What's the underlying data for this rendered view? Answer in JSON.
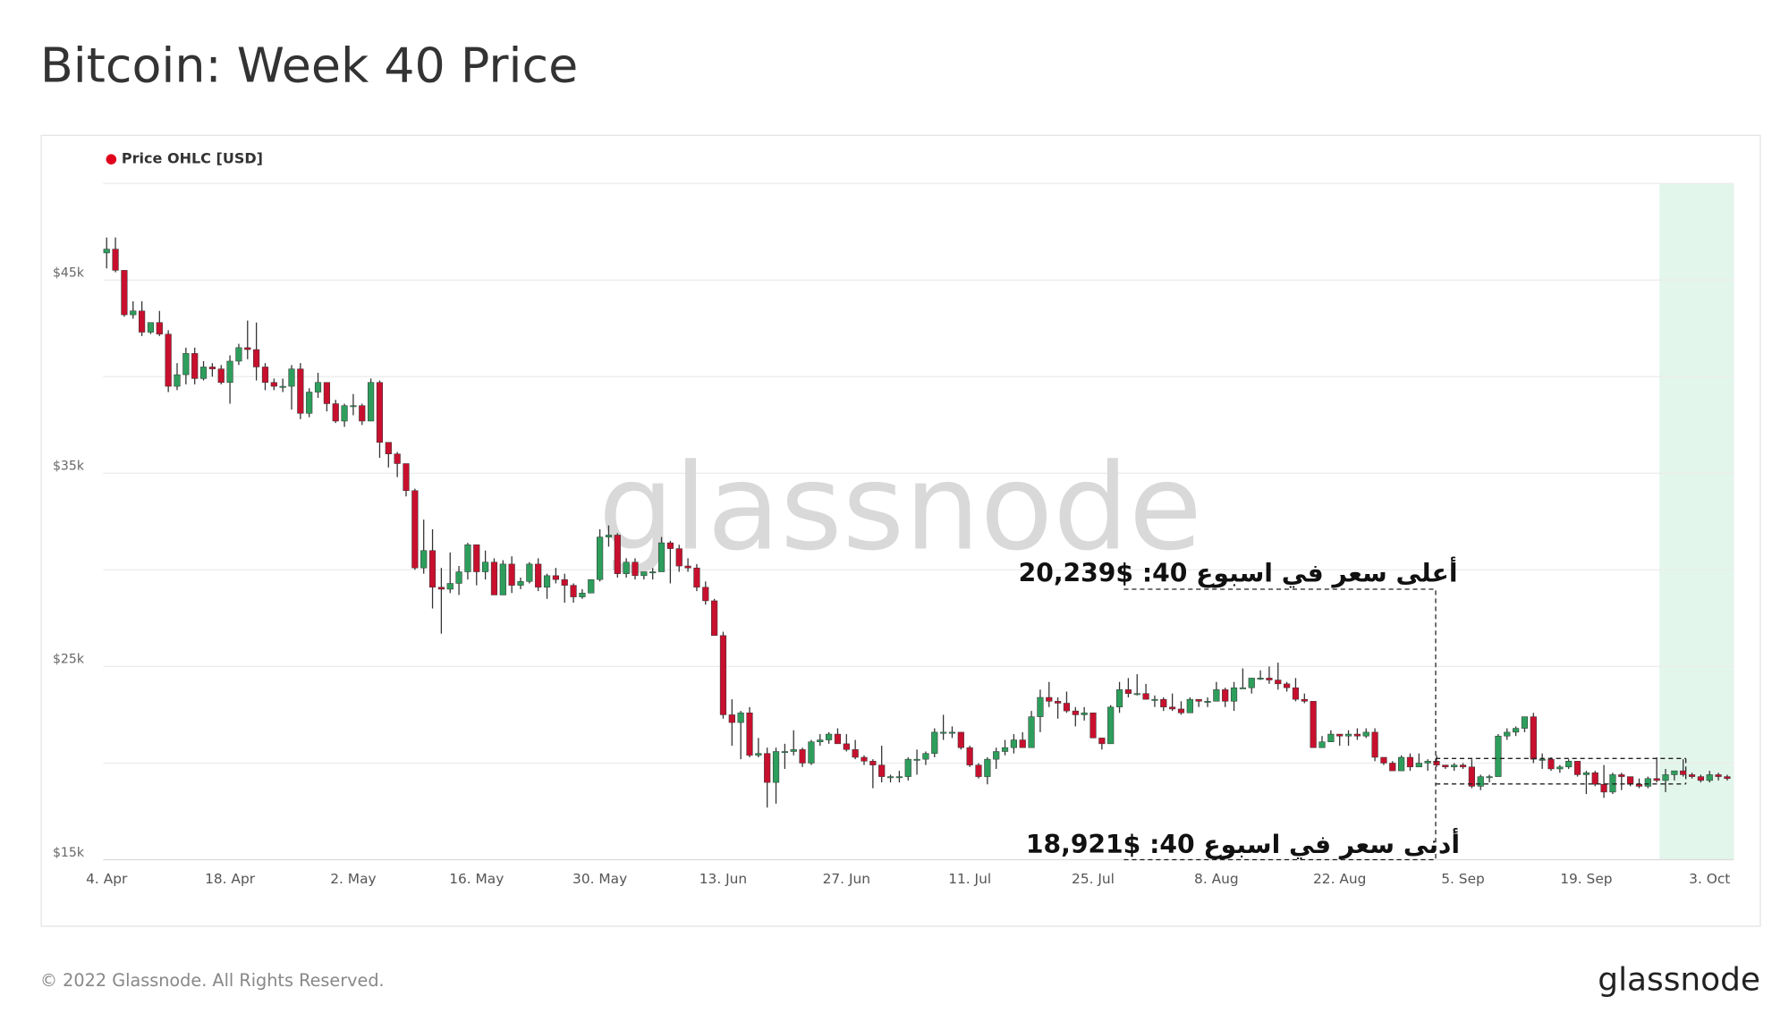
{
  "chart_data": {
    "type": "candlestick",
    "title": "Bitcoin: Week 40 Price",
    "series_name": "Price OHLC [USD]",
    "legend_color": "#e0001b",
    "watermark": "glassnode",
    "up_color": "#2d9e5c",
    "down_color": "#c8102e",
    "ylim": [
      15000,
      50000
    ],
    "yticks": [
      {
        "value": 15000,
        "label": "$15k"
      },
      {
        "value": 20000,
        "label": null
      },
      {
        "value": 25000,
        "label": "$25k"
      },
      {
        "value": 30000,
        "label": null
      },
      {
        "value": 35000,
        "label": "$35k"
      },
      {
        "value": 40000,
        "label": null
      },
      {
        "value": 45000,
        "label": "$45k"
      },
      {
        "value": 50000,
        "label": null
      }
    ],
    "grid": true,
    "categories": [
      "4. Apr",
      null,
      null,
      null,
      null,
      null,
      null,
      null,
      null,
      null,
      null,
      null,
      null,
      null,
      "18. Apr",
      null,
      null,
      null,
      null,
      null,
      null,
      null,
      null,
      null,
      null,
      null,
      null,
      null,
      "2. May",
      null,
      null,
      null,
      null,
      null,
      null,
      null,
      null,
      null,
      null,
      null,
      null,
      null,
      "16. May",
      null,
      null,
      null,
      null,
      null,
      null,
      null,
      null,
      null,
      null,
      null,
      null,
      null,
      "30. May",
      null,
      null,
      null,
      null,
      null,
      null,
      null,
      null,
      null,
      null,
      null,
      null,
      null,
      "13. Jun",
      null,
      null,
      null,
      null,
      null,
      null,
      null,
      null,
      null,
      null,
      null,
      null,
      null,
      "27. Jun",
      null,
      null,
      null,
      null,
      null,
      null,
      null,
      null,
      null,
      null,
      null,
      null,
      null,
      "11. Jul",
      null,
      null,
      null,
      null,
      null,
      null,
      null,
      null,
      null,
      null,
      null,
      null,
      null,
      "25. Jul",
      null,
      null,
      null,
      null,
      null,
      null,
      null,
      null,
      null,
      null,
      null,
      null,
      null,
      "8. Aug",
      null,
      null,
      null,
      null,
      null,
      null,
      null,
      null,
      null,
      null,
      null,
      null,
      null,
      "22. Aug",
      null,
      null,
      null,
      null,
      null,
      null,
      null,
      null,
      null,
      null,
      null,
      null,
      null,
      "5. Sep",
      null,
      null,
      null,
      null,
      null,
      null,
      null,
      null,
      null,
      null,
      null,
      null,
      null,
      "19. Sep",
      null,
      null,
      null,
      null,
      null,
      null,
      null,
      null,
      null,
      null,
      null,
      null,
      null,
      "3. Oct",
      null,
      null
    ],
    "open": [
      46400,
      46600,
      45500,
      43200,
      43400,
      42300,
      42800,
      42200,
      39500,
      40100,
      41200,
      39900,
      40500,
      40400,
      39700,
      40800,
      41500,
      41400,
      40500,
      39700,
      39500,
      39500,
      40400,
      38100,
      39200,
      39700,
      38600,
      37700,
      38500,
      38500,
      37700,
      39700,
      36600,
      36000,
      35500,
      34100,
      30100,
      31000,
      29100,
      29000,
      29300,
      29900,
      31300,
      29900,
      30400,
      28700,
      30300,
      29200,
      29400,
      30300,
      29100,
      29700,
      29500,
      29200,
      28600,
      28800,
      29500,
      31700,
      31800,
      29800,
      30400,
      29700,
      29900,
      29900,
      31400,
      31100,
      30200,
      30100,
      29100,
      28400,
      26600,
      22500,
      22100,
      22600,
      20400,
      20500,
      19000,
      20600,
      20600,
      20700,
      20000,
      21100,
      21200,
      21500,
      21000,
      20700,
      20300,
      20100,
      19900,
      19300,
      19300,
      19300,
      20200,
      20200,
      20500,
      21600,
      21600,
      21600,
      20800,
      19900,
      19300,
      20200,
      20600,
      20800,
      21200,
      20800,
      22400,
      23400,
      23200,
      23100,
      22700,
      22500,
      22600,
      21300,
      21000,
      22900,
      23800,
      23600,
      23600,
      23300,
      23300,
      22900,
      22800,
      22600,
      23300,
      23200,
      23200,
      23800,
      23200,
      23900,
      23900,
      24400,
      24400,
      24300,
      24100,
      23900,
      23300,
      23200,
      20800,
      21100,
      21500,
      21400,
      21500,
      21400,
      21600,
      20300,
      20000,
      19600,
      20300,
      19800,
      20000,
      20100,
      19900,
      19800,
      19900,
      19800,
      18800,
      19300,
      19300,
      21400,
      21600,
      21800,
      22400,
      20200,
      20200,
      19700,
      19800,
      20100,
      19400,
      19500,
      18900,
      18500,
      19400,
      19300,
      18900,
      18800,
      19200,
      19100,
      19400,
      19600,
      19400,
      19300,
      19100,
      19400,
      19300
    ],
    "high": [
      47200,
      47200,
      45500,
      43900,
      43900,
      42800,
      43400,
      42400,
      40700,
      41500,
      41500,
      40800,
      40700,
      40600,
      41100,
      41700,
      42900,
      42800,
      40700,
      39900,
      39900,
      40600,
      40700,
      39400,
      40200,
      39700,
      38800,
      38600,
      39100,
      38600,
      39900,
      39800,
      36600,
      36100,
      35500,
      34200,
      32600,
      32100,
      30100,
      30900,
      30200,
      31400,
      31300,
      31000,
      30600,
      30500,
      30700,
      29600,
      30400,
      30600,
      29800,
      30100,
      29800,
      29300,
      29000,
      29500,
      32100,
      32300,
      31900,
      30600,
      30600,
      29900,
      30100,
      31700,
      31500,
      31300,
      30600,
      30300,
      29400,
      28500,
      26800,
      23300,
      22700,
      22900,
      21300,
      20800,
      20800,
      21000,
      21700,
      20800,
      21200,
      21500,
      21600,
      21800,
      21500,
      21200,
      20400,
      20200,
      20900,
      19400,
      19600,
      20300,
      20700,
      20600,
      21800,
      22500,
      21900,
      21600,
      20900,
      20000,
      20300,
      20800,
      21200,
      21500,
      21600,
      22700,
      23800,
      24200,
      23400,
      23700,
      22900,
      22900,
      22600,
      21300,
      23000,
      24200,
      24400,
      24600,
      24100,
      23500,
      23400,
      23600,
      23200,
      23400,
      23300,
      23400,
      24200,
      23900,
      24200,
      24900,
      24400,
      24800,
      25000,
      25200,
      24200,
      24400,
      23600,
      23200,
      21400,
      21700,
      21500,
      21700,
      21800,
      21800,
      21800,
      20300,
      20100,
      20400,
      20500,
      20500,
      20200,
      20400,
      19900,
      20000,
      20000,
      20200,
      19400,
      19400,
      21500,
      21800,
      21900,
      22400,
      22600,
      20500,
      20300,
      19900,
      20200,
      20100,
      19600,
      19600,
      19900,
      19500,
      19500,
      19300,
      19200,
      19300,
      20300,
      19700,
      19600,
      20200,
      19500,
      19400,
      19600,
      19500,
      19400
    ],
    "low": [
      45600,
      45400,
      43100,
      43000,
      42100,
      42200,
      42100,
      39200,
      39300,
      39600,
      39600,
      39800,
      40000,
      39600,
      38600,
      40600,
      40900,
      39800,
      39300,
      39300,
      39200,
      38300,
      37800,
      37900,
      38900,
      38200,
      37600,
      37400,
      38000,
      37500,
      37700,
      35800,
      35300,
      34800,
      33800,
      30000,
      29800,
      28000,
      26700,
      28800,
      28700,
      29500,
      29200,
      29500,
      28700,
      28700,
      28800,
      29000,
      29300,
      28900,
      28500,
      29300,
      28300,
      28300,
      28500,
      28800,
      29400,
      31200,
      29600,
      29600,
      29500,
      29500,
      29500,
      29900,
      29300,
      29900,
      29900,
      28900,
      28200,
      26600,
      22300,
      20900,
      20200,
      20300,
      20300,
      17700,
      17900,
      19700,
      20400,
      19800,
      19900,
      20900,
      21000,
      21000,
      20600,
      20200,
      19900,
      18700,
      19000,
      19000,
      19000,
      19100,
      19400,
      19900,
      20300,
      21200,
      21300,
      20700,
      19800,
      19200,
      18900,
      19700,
      20400,
      20500,
      20800,
      20800,
      21600,
      22900,
      22300,
      22600,
      21900,
      22200,
      21300,
      20700,
      21000,
      22600,
      23400,
      23500,
      23300,
      22900,
      22700,
      22700,
      22500,
      22600,
      22900,
      22900,
      23200,
      22900,
      22700,
      23900,
      23600,
      24300,
      24100,
      23800,
      23700,
      23200,
      23100,
      20800,
      20800,
      21100,
      20900,
      20900,
      21200,
      21300,
      20100,
      19900,
      19600,
      19600,
      19600,
      19800,
      19600,
      19800,
      19700,
      19600,
      19700,
      18700,
      18600,
      19000,
      19300,
      21200,
      21400,
      21600,
      20000,
      19700,
      19600,
      19500,
      19700,
      19300,
      18400,
      18800,
      18200,
      18400,
      18600,
      18800,
      18700,
      18700,
      19000,
      18500,
      19100,
      19300,
      19200,
      19000,
      19000,
      19100,
      19100
    ],
    "close": [
      46600,
      45500,
      43200,
      43400,
      42300,
      42800,
      42200,
      39500,
      40100,
      41200,
      39900,
      40500,
      40400,
      39700,
      40800,
      41500,
      41400,
      40500,
      39700,
      39500,
      39500,
      40400,
      38100,
      39200,
      39700,
      38600,
      37700,
      38500,
      38500,
      37700,
      39700,
      36600,
      36000,
      35500,
      34100,
      30100,
      31000,
      29100,
      29000,
      29300,
      29900,
      31300,
      29900,
      30400,
      28700,
      30300,
      29200,
      29400,
      30300,
      29100,
      29700,
      29500,
      29200,
      28600,
      28800,
      29500,
      31700,
      31800,
      29800,
      30400,
      29700,
      29900,
      29900,
      31400,
      31100,
      30200,
      30100,
      29100,
      28400,
      26600,
      22500,
      22100,
      22600,
      20400,
      20500,
      19000,
      20600,
      20600,
      20700,
      20000,
      21100,
      21200,
      21500,
      21000,
      20700,
      20300,
      20100,
      19900,
      19300,
      19300,
      19300,
      20200,
      20200,
      20500,
      21600,
      21600,
      21600,
      20800,
      19900,
      19300,
      20200,
      20600,
      20800,
      21200,
      20800,
      22400,
      23400,
      23200,
      23100,
      22700,
      22500,
      22600,
      21300,
      21000,
      22900,
      23800,
      23600,
      23600,
      23300,
      23300,
      22900,
      22800,
      22600,
      23300,
      23200,
      23200,
      23800,
      23200,
      23900,
      23900,
      24400,
      24400,
      24300,
      24100,
      23900,
      23300,
      23200,
      20800,
      21100,
      21500,
      21400,
      21500,
      21400,
      21600,
      20300,
      20000,
      19600,
      20300,
      19800,
      20000,
      20100,
      19900,
      19800,
      19900,
      19800,
      18800,
      19300,
      19300,
      21400,
      21600,
      21800,
      22400,
      20200,
      20200,
      19700,
      19800,
      20100,
      19400,
      19500,
      18900,
      18500,
      19400,
      19300,
      18900,
      18800,
      19200,
      19100,
      19400,
      19600,
      19400,
      19300,
      19100,
      19400,
      19300,
      19200
    ],
    "annotations": [
      {
        "text": "أعلى سعر في اسبوع 40: $20,239",
        "value": 20239
      },
      {
        "text": "أدنى سعر في اسبوع 40: $18,921",
        "value": 18921
      }
    ]
  },
  "footer": {
    "copyright": "© 2022 Glassnode. All Rights Reserved.",
    "logo": "glassnode"
  }
}
